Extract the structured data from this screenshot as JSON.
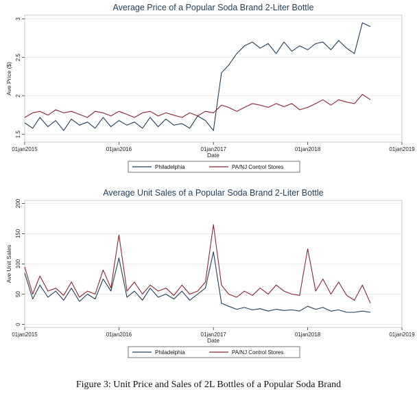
{
  "caption": "Figure 3: Unit Price and Sales of 2L Bottles of a Popular Soda Brand",
  "chart_data": [
    {
      "type": "line",
      "title": "Average Price of a Popular Soda Brand 2-Liter Bottle",
      "xlabel": "Date",
      "ylabel": "Ave Price ($)",
      "xlim": [
        "2015-01-01",
        "2019-01-01"
      ],
      "x_ticks": [
        "01jan2015",
        "01jan2016",
        "01jan2017",
        "01jan2018",
        "01jan2019"
      ],
      "ylim": [
        1.4,
        3.05
      ],
      "y_ticks": [
        "1.5",
        "2",
        "2.5",
        "3"
      ],
      "grid": true,
      "legend_position": "bottom",
      "colors": {
        "Philadelphia": "#1f3d5c",
        "PA/NJ Control Stores": "#8c2330"
      },
      "series": [
        {
          "name": "Philadelphia",
          "x": [
            "2015-01-01",
            "2015-02-01",
            "2015-03-01",
            "2015-04-01",
            "2015-05-01",
            "2015-06-01",
            "2015-07-01",
            "2015-08-01",
            "2015-09-01",
            "2015-10-01",
            "2015-11-01",
            "2015-12-01",
            "2016-01-01",
            "2016-02-01",
            "2016-03-01",
            "2016-04-01",
            "2016-05-01",
            "2016-06-01",
            "2016-07-01",
            "2016-08-01",
            "2016-09-01",
            "2016-10-01",
            "2016-11-01",
            "2016-12-01",
            "2017-01-01",
            "2017-02-01",
            "2017-03-01",
            "2017-04-01",
            "2017-05-01",
            "2017-06-01",
            "2017-07-01",
            "2017-08-01",
            "2017-09-01",
            "2017-10-01",
            "2017-11-01",
            "2017-12-01",
            "2018-01-01",
            "2018-02-01",
            "2018-03-01",
            "2018-04-01",
            "2018-05-01",
            "2018-06-01",
            "2018-07-01",
            "2018-08-01",
            "2018-09-01"
          ],
          "y": [
            1.65,
            1.58,
            1.72,
            1.6,
            1.68,
            1.55,
            1.7,
            1.62,
            1.66,
            1.58,
            1.72,
            1.6,
            1.68,
            1.62,
            1.66,
            1.58,
            1.72,
            1.6,
            1.7,
            1.62,
            1.64,
            1.58,
            1.74,
            1.68,
            1.55,
            2.3,
            2.4,
            2.55,
            2.65,
            2.7,
            2.62,
            2.68,
            2.55,
            2.7,
            2.58,
            2.65,
            2.6,
            2.68,
            2.7,
            2.6,
            2.72,
            2.62,
            2.55,
            2.95,
            2.9
          ]
        },
        {
          "name": "PA/NJ Control Stores",
          "x": [
            "2015-01-01",
            "2015-02-01",
            "2015-03-01",
            "2015-04-01",
            "2015-05-01",
            "2015-06-01",
            "2015-07-01",
            "2015-08-01",
            "2015-09-01",
            "2015-10-01",
            "2015-11-01",
            "2015-12-01",
            "2016-01-01",
            "2016-02-01",
            "2016-03-01",
            "2016-04-01",
            "2016-05-01",
            "2016-06-01",
            "2016-07-01",
            "2016-08-01",
            "2016-09-01",
            "2016-10-01",
            "2016-11-01",
            "2016-12-01",
            "2017-01-01",
            "2017-02-01",
            "2017-03-01",
            "2017-04-01",
            "2017-05-01",
            "2017-06-01",
            "2017-07-01",
            "2017-08-01",
            "2017-09-01",
            "2017-10-01",
            "2017-11-01",
            "2017-12-01",
            "2018-01-01",
            "2018-02-01",
            "2018-03-01",
            "2018-04-01",
            "2018-05-01",
            "2018-06-01",
            "2018-07-01",
            "2018-08-01",
            "2018-09-01"
          ],
          "y": [
            1.72,
            1.78,
            1.8,
            1.75,
            1.82,
            1.78,
            1.8,
            1.76,
            1.72,
            1.8,
            1.78,
            1.74,
            1.8,
            1.76,
            1.72,
            1.78,
            1.8,
            1.74,
            1.78,
            1.75,
            1.72,
            1.78,
            1.74,
            1.8,
            1.78,
            1.88,
            1.85,
            1.8,
            1.85,
            1.9,
            1.88,
            1.85,
            1.9,
            1.86,
            1.9,
            1.82,
            1.85,
            1.9,
            1.95,
            1.88,
            1.95,
            1.92,
            1.9,
            2.02,
            1.95
          ]
        }
      ]
    },
    {
      "type": "line",
      "title": "Average Unit Sales of a Popular Soda Brand 2-Liter Bottle",
      "xlabel": "Date",
      "ylabel": "Ave Unit Sales",
      "xlim": [
        "2015-01-01",
        "2019-01-01"
      ],
      "x_ticks": [
        "01jan2015",
        "01jan2016",
        "01jan2017",
        "01jan2018",
        "01jan2019"
      ],
      "ylim": [
        -5,
        205
      ],
      "y_ticks": [
        "0",
        "50",
        "100",
        "150",
        "200"
      ],
      "grid": true,
      "legend_position": "bottom",
      "colors": {
        "Philadelphia": "#1f3d5c",
        "PA/NJ Control Stores": "#8c2330"
      },
      "series": [
        {
          "name": "Philadelphia",
          "x": [
            "2015-01-01",
            "2015-02-01",
            "2015-03-01",
            "2015-04-01",
            "2015-05-01",
            "2015-06-01",
            "2015-07-01",
            "2015-08-01",
            "2015-09-01",
            "2015-10-01",
            "2015-11-01",
            "2015-12-01",
            "2016-01-01",
            "2016-02-01",
            "2016-03-01",
            "2016-04-01",
            "2016-05-01",
            "2016-06-01",
            "2016-07-01",
            "2016-08-01",
            "2016-09-01",
            "2016-10-01",
            "2016-11-01",
            "2016-12-01",
            "2017-01-01",
            "2017-02-01",
            "2017-03-01",
            "2017-04-01",
            "2017-05-01",
            "2017-06-01",
            "2017-07-01",
            "2017-08-01",
            "2017-09-01",
            "2017-10-01",
            "2017-11-01",
            "2017-12-01",
            "2018-01-01",
            "2018-02-01",
            "2018-03-01",
            "2018-04-01",
            "2018-05-01",
            "2018-06-01",
            "2018-07-01",
            "2018-08-01",
            "2018-09-01"
          ],
          "y": [
            85,
            42,
            65,
            45,
            55,
            40,
            60,
            38,
            50,
            42,
            75,
            55,
            110,
            45,
            55,
            40,
            60,
            45,
            50,
            42,
            55,
            40,
            50,
            60,
            120,
            35,
            30,
            25,
            28,
            24,
            26,
            22,
            25,
            23,
            24,
            22,
            30,
            25,
            28,
            22,
            24,
            20,
            20,
            22,
            20
          ]
        },
        {
          "name": "PA/NJ Control Stores",
          "x": [
            "2015-01-01",
            "2015-02-01",
            "2015-03-01",
            "2015-04-01",
            "2015-05-01",
            "2015-06-01",
            "2015-07-01",
            "2015-08-01",
            "2015-09-01",
            "2015-10-01",
            "2015-11-01",
            "2015-12-01",
            "2016-01-01",
            "2016-02-01",
            "2016-03-01",
            "2016-04-01",
            "2016-05-01",
            "2016-06-01",
            "2016-07-01",
            "2016-08-01",
            "2016-09-01",
            "2016-10-01",
            "2016-11-01",
            "2016-12-01",
            "2017-01-01",
            "2017-02-01",
            "2017-03-01",
            "2017-04-01",
            "2017-05-01",
            "2017-06-01",
            "2017-07-01",
            "2017-08-01",
            "2017-09-01",
            "2017-10-01",
            "2017-11-01",
            "2017-12-01",
            "2018-01-01",
            "2018-02-01",
            "2018-03-01",
            "2018-04-01",
            "2018-05-01",
            "2018-06-01",
            "2018-07-01",
            "2018-08-01",
            "2018-09-01"
          ],
          "y": [
            95,
            50,
            80,
            55,
            60,
            48,
            70,
            45,
            55,
            50,
            90,
            60,
            148,
            55,
            70,
            50,
            65,
            55,
            60,
            48,
            65,
            50,
            55,
            70,
            165,
            65,
            50,
            45,
            55,
            48,
            60,
            50,
            65,
            55,
            50,
            48,
            125,
            55,
            75,
            50,
            70,
            48,
            40,
            65,
            35
          ]
        }
      ]
    }
  ]
}
